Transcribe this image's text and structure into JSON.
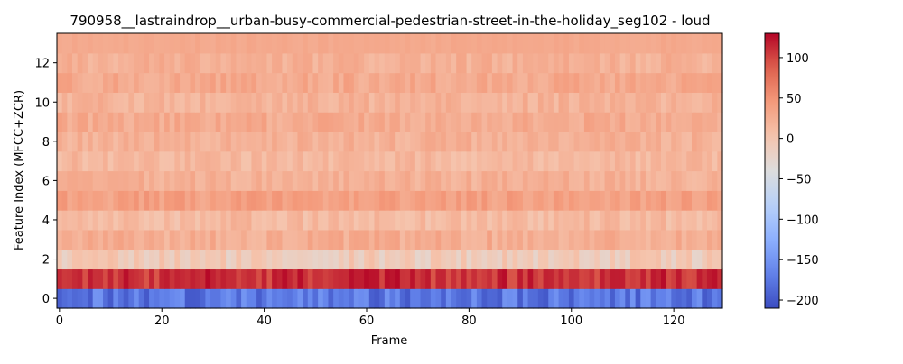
{
  "chart_data": {
    "type": "heatmap",
    "title": "790958__lastraindrop__urban-busy-commercial-pedestrian-street-in-the-holiday_seg102 - loud",
    "xlabel": "Frame",
    "ylabel": "Feature Index (MFCC+ZCR)",
    "n_frames": 130,
    "n_features": 14,
    "xlim": [
      -0.5,
      129.5
    ],
    "ylim": [
      -0.5,
      13.5
    ],
    "x_ticks": [
      0,
      20,
      40,
      60,
      80,
      100,
      120
    ],
    "y_ticks": [
      0,
      2,
      4,
      6,
      8,
      10,
      12
    ],
    "colormap": "coolwarm",
    "value_range": [
      -210,
      130
    ],
    "colorbar_ticks": [
      100,
      50,
      0,
      -50,
      -100,
      -150,
      -200
    ],
    "grid": false,
    "row_levels": [
      {
        "feature": 0,
        "mean": -175,
        "spread": 25
      },
      {
        "feature": 1,
        "mean": 110,
        "spread": 18
      },
      {
        "feature": 2,
        "mean": -8,
        "spread": 18
      },
      {
        "feature": 3,
        "mean": 25,
        "spread": 14
      },
      {
        "feature": 4,
        "mean": 12,
        "spread": 14
      },
      {
        "feature": 5,
        "mean": 38,
        "spread": 12
      },
      {
        "feature": 6,
        "mean": 22,
        "spread": 12
      },
      {
        "feature": 7,
        "mean": 15,
        "spread": 12
      },
      {
        "feature": 8,
        "mean": 22,
        "spread": 12
      },
      {
        "feature": 9,
        "mean": 28,
        "spread": 12
      },
      {
        "feature": 10,
        "mean": 20,
        "spread": 12
      },
      {
        "feature": 11,
        "mean": 30,
        "spread": 12
      },
      {
        "feature": 12,
        "mean": 22,
        "spread": 12
      },
      {
        "feature": 13,
        "mean": 30,
        "spread": 4
      }
    ]
  }
}
